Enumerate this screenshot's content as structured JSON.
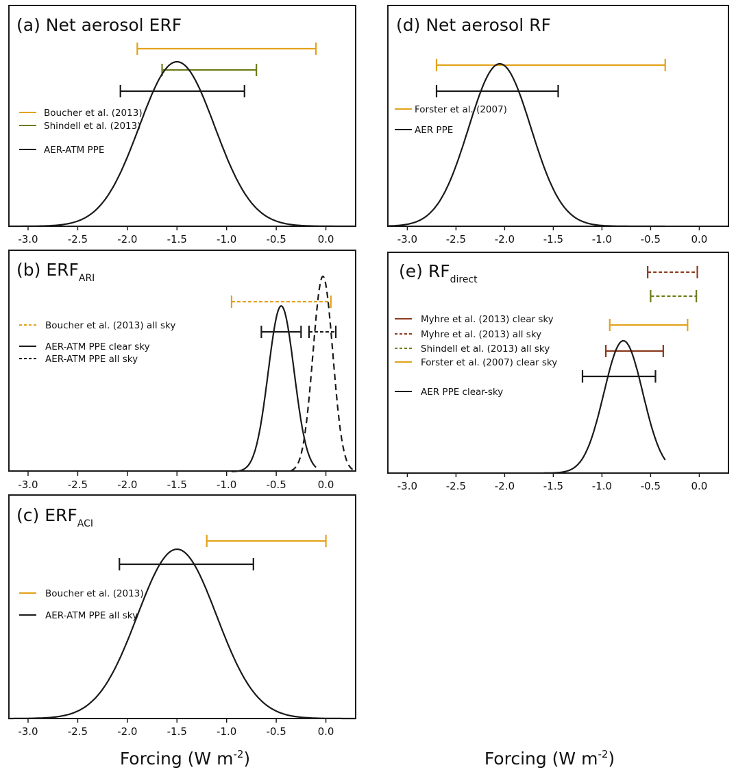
{
  "xlabels": [
    "Forcing (W m",
    "-2",
    ")"
  ],
  "colors": {
    "black": "#1a1a1a",
    "orange": "#e3a21a",
    "olive": "#6b7d1a",
    "brown": "#8b3a1c"
  },
  "chart_data": [
    {
      "id": "a",
      "type": "line",
      "title": "(a) Net aerosol ERF",
      "title_sub": "",
      "xlim": [
        -3.2,
        0.3
      ],
      "xticks": [
        -3.0,
        -2.5,
        -2.0,
        -1.5,
        -1.0,
        -0.5,
        0.0
      ],
      "tick_labels": [
        "-3.0",
        "-2.5",
        "-2.0",
        "-1.5",
        "-1.0",
        "-0.5",
        "0.0"
      ],
      "ranges": [
        {
          "name": "Boucher et al. (2013)",
          "lo": -1.9,
          "hi": -0.1,
          "color": "orange",
          "dash": false
        },
        {
          "name": "Shindell et al. (2013)",
          "lo": -1.65,
          "hi": -0.7,
          "color": "olive",
          "dash": false
        },
        {
          "name": "AER-ATM PPE",
          "lo": -2.07,
          "hi": -0.82,
          "color": "black",
          "dash": false
        }
      ],
      "legend": [
        {
          "label": "Boucher et al. (2013)",
          "color": "orange",
          "dash": false
        },
        {
          "label": "Shindell et al. (2013)",
          "color": "olive",
          "dash": false
        },
        {
          "label": "AER-ATM PPE",
          "color": "black",
          "dash": false
        }
      ],
      "curves": [
        {
          "name": "AER-ATM PPE",
          "color": "black",
          "dash": false,
          "mu": -1.5,
          "sigma": 0.38,
          "peak": 0.6,
          "from": -3.2,
          "to": 0.3
        }
      ]
    },
    {
      "id": "d",
      "type": "line",
      "title": "(d) Net aerosol RF",
      "title_sub": "",
      "xlim": [
        -3.2,
        0.3
      ],
      "xticks": [
        -3.0,
        -2.5,
        -2.0,
        -1.5,
        -1.0,
        -0.5,
        0.0
      ],
      "tick_labels": [
        "-3.0",
        "-2.5",
        "-2.0",
        "-1.5",
        "-1.0",
        "-0.5",
        "0.0"
      ],
      "ranges": [
        {
          "name": "Forster et al. (2007)",
          "lo": -2.7,
          "hi": -0.35,
          "color": "orange",
          "dash": false
        },
        {
          "name": "AER PPE",
          "lo": -2.7,
          "hi": -1.45,
          "color": "black",
          "dash": false
        }
      ],
      "legend": [
        {
          "label": "Forster et al. (2007)",
          "color": "orange",
          "dash": false
        },
        {
          "label": "AER PPE",
          "color": "black",
          "dash": false
        }
      ],
      "curves": [
        {
          "name": "AER PPE",
          "color": "black",
          "dash": false,
          "mu": -2.05,
          "sigma": 0.32,
          "peak": 0.6,
          "from": -3.2,
          "to": -0.35
        }
      ]
    },
    {
      "id": "b",
      "type": "line",
      "title": "(b) ERF",
      "title_sub": "ARI",
      "xlim": [
        -3.2,
        0.3
      ],
      "xticks": [
        -3.0,
        -2.5,
        -2.0,
        -1.5,
        -1.0,
        -0.5,
        0.0
      ],
      "tick_labels": [
        "-3.0",
        "-2.5",
        "-2.0",
        "-1.5",
        "-1.0",
        "-0.5",
        "0.0"
      ],
      "ranges": [
        {
          "name": "Boucher et al. (2013) all sky",
          "lo": -0.95,
          "hi": 0.05,
          "color": "orange",
          "dash": true
        },
        {
          "name": "AER-ATM PPE clear sky",
          "lo": -0.65,
          "hi": -0.25,
          "color": "black",
          "dash": false
        },
        {
          "name": "AER-ATM PPE all sky",
          "lo": -0.17,
          "hi": 0.1,
          "color": "black",
          "dash": true
        }
      ],
      "legend": [
        {
          "label": "Boucher et al. (2013) all sky",
          "color": "orange",
          "dash": true
        },
        {
          "label": "AER-ATM PPE clear sky",
          "color": "black",
          "dash": false
        },
        {
          "label": "AER-ATM PPE all sky",
          "color": "black",
          "dash": true
        }
      ],
      "curves": [
        {
          "name": "AER-ATM PPE clear sky",
          "color": "black",
          "dash": false,
          "mu": -0.45,
          "sigma": 0.13,
          "peak": 0.56,
          "from": -0.95,
          "to": -0.1
        },
        {
          "name": "AER-ATM PPE all sky",
          "color": "black",
          "dash": true,
          "mu": -0.03,
          "sigma": 0.1,
          "peak": 0.66,
          "from": -0.35,
          "to": 0.28
        }
      ]
    },
    {
      "id": "e",
      "type": "line",
      "title": "(e) RF",
      "title_sub": "direct",
      "xlim": [
        -3.2,
        0.3
      ],
      "xticks": [
        -3.0,
        -2.5,
        -2.0,
        -1.5,
        -1.0,
        -0.5,
        0.0
      ],
      "tick_labels": [
        "-3.0",
        "-2.5",
        "-2.0",
        "-1.5",
        "-1.0",
        "-0.5",
        "0.0"
      ],
      "ranges": [
        {
          "name": "Myhre et al. (2013) all sky",
          "lo": -0.53,
          "hi": -0.02,
          "color": "brown",
          "dash": true
        },
        {
          "name": "Shindell et al. (2013) all sky",
          "lo": -0.5,
          "hi": -0.03,
          "color": "olive",
          "dash": true
        },
        {
          "name": "Forster et al. (2007) clear sky",
          "lo": -0.92,
          "hi": -0.12,
          "color": "orange",
          "dash": false
        },
        {
          "name": "Myhre et al. (2013) clear sky",
          "lo": -0.96,
          "hi": -0.37,
          "color": "brown",
          "dash": false
        },
        {
          "name": "AER PPE clear-sky",
          "lo": -1.2,
          "hi": -0.45,
          "color": "black",
          "dash": false
        }
      ],
      "legend": [
        {
          "label": "Myhre et al. (2013) clear sky",
          "color": "brown",
          "dash": false
        },
        {
          "label": "Myhre et al. (2013) all sky",
          "color": "brown",
          "dash": true
        },
        {
          "label": "Shindell et al. (2013) all sky",
          "color": "olive",
          "dash": true
        },
        {
          "label": "Forster et al. (2007) clear sky",
          "color": "orange",
          "dash": false
        },
        {
          "label": "AER PPE clear-sky",
          "color": "black",
          "dash": false
        }
      ],
      "curves": [
        {
          "name": "AER PPE clear-sky",
          "color": "black",
          "dash": false,
          "mu": -0.78,
          "sigma": 0.2,
          "peak": 0.6,
          "from": -1.6,
          "to": -0.35
        }
      ]
    },
    {
      "id": "c",
      "type": "line",
      "title": "(c) ERF",
      "title_sub": "ACI",
      "xlim": [
        -3.2,
        0.3
      ],
      "xticks": [
        -3.0,
        -2.5,
        -2.0,
        -1.5,
        -1.0,
        -0.5,
        0.0
      ],
      "tick_labels": [
        "-3.0",
        "-2.5",
        "-2.0",
        "-1.5",
        "-1.0",
        "-0.5",
        "0.0"
      ],
      "ranges": [
        {
          "name": "Boucher et al. (2013)",
          "lo": -1.2,
          "hi": 0.0,
          "color": "orange",
          "dash": false
        },
        {
          "name": "AER-ATM PPE all sky",
          "lo": -2.08,
          "hi": -0.73,
          "color": "black",
          "dash": false
        }
      ],
      "legend": [
        {
          "label": "Boucher et al. (2013)",
          "color": "orange",
          "dash": false
        },
        {
          "label": "AER-ATM PPE all sky",
          "color": "black",
          "dash": false
        }
      ],
      "curves": [
        {
          "name": "AER-ATM PPE all sky",
          "color": "black",
          "dash": false,
          "mu": -1.5,
          "sigma": 0.4,
          "peak": 0.6,
          "from": -3.2,
          "to": 0.3
        }
      ]
    }
  ]
}
